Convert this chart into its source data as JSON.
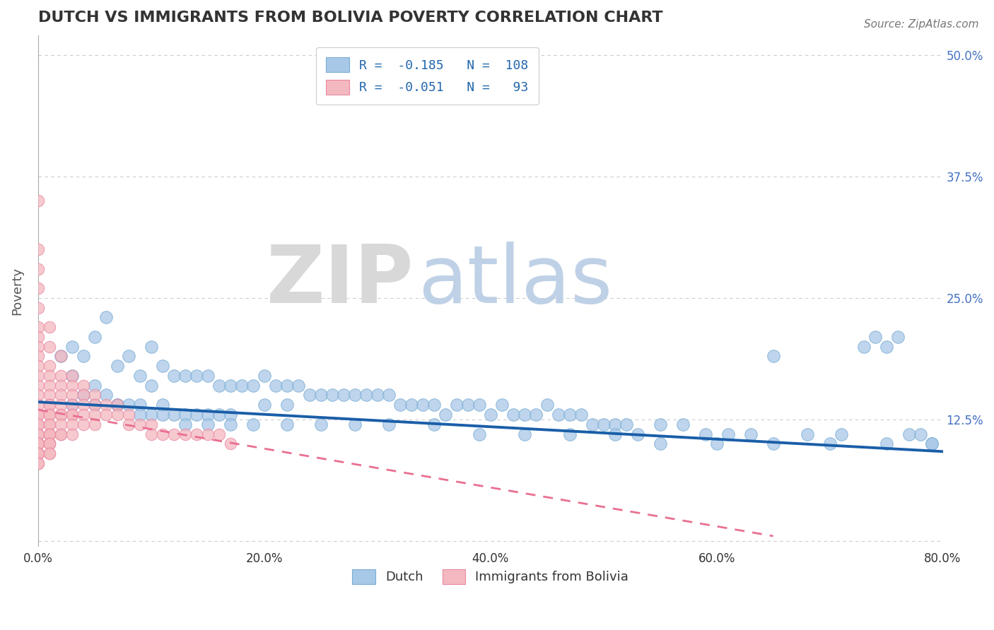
{
  "title": "DUTCH VS IMMIGRANTS FROM BOLIVIA POVERTY CORRELATION CHART",
  "source_text": "Source: ZipAtlas.com",
  "ylabel": "Poverty",
  "watermark_zip": "ZIP",
  "watermark_atlas": "atlas",
  "dutch_color": "#a8c8e8",
  "dutch_edge_color": "#7aadd4",
  "bolivia_color": "#f4b8c0",
  "bolivia_edge_color": "#e888a0",
  "dutch_line_color": "#1a5ea8",
  "bolivia_line_color": "#e87090",
  "xlim": [
    0.0,
    0.8
  ],
  "ylim": [
    -0.005,
    0.52
  ],
  "xticks": [
    0.0,
    0.2,
    0.4,
    0.6,
    0.8
  ],
  "xtick_labels": [
    "0.0%",
    "20.0%",
    "40.0%",
    "60.0%",
    "80.0%"
  ],
  "ytick_positions": [
    0.0,
    0.125,
    0.25,
    0.375,
    0.5
  ],
  "ytick_labels": [
    "",
    "12.5%",
    "25.0%",
    "37.5%",
    "50.0%"
  ],
  "background_color": "#ffffff",
  "grid_color": "#cccccc",
  "title_color": "#333333",
  "dutch_scatter_x": [
    0.02,
    0.03,
    0.03,
    0.04,
    0.04,
    0.05,
    0.05,
    0.06,
    0.06,
    0.07,
    0.07,
    0.08,
    0.08,
    0.09,
    0.09,
    0.1,
    0.1,
    0.1,
    0.11,
    0.11,
    0.12,
    0.12,
    0.13,
    0.13,
    0.14,
    0.14,
    0.15,
    0.15,
    0.16,
    0.16,
    0.17,
    0.17,
    0.18,
    0.19,
    0.2,
    0.2,
    0.21,
    0.22,
    0.22,
    0.23,
    0.24,
    0.25,
    0.26,
    0.27,
    0.28,
    0.29,
    0.3,
    0.31,
    0.32,
    0.33,
    0.34,
    0.35,
    0.36,
    0.37,
    0.38,
    0.39,
    0.4,
    0.41,
    0.42,
    0.43,
    0.44,
    0.45,
    0.46,
    0.47,
    0.48,
    0.49,
    0.5,
    0.51,
    0.52,
    0.53,
    0.55,
    0.57,
    0.59,
    0.61,
    0.63,
    0.65,
    0.68,
    0.71,
    0.73,
    0.75,
    0.77,
    0.78,
    0.79,
    0.03,
    0.05,
    0.07,
    0.09,
    0.11,
    0.13,
    0.15,
    0.17,
    0.19,
    0.22,
    0.25,
    0.28,
    0.31,
    0.35,
    0.39,
    0.43,
    0.47,
    0.51,
    0.55,
    0.6,
    0.65,
    0.7,
    0.75,
    0.79,
    0.76,
    0.74
  ],
  "dutch_scatter_y": [
    0.19,
    0.2,
    0.17,
    0.19,
    0.15,
    0.21,
    0.16,
    0.23,
    0.15,
    0.18,
    0.14,
    0.19,
    0.14,
    0.17,
    0.14,
    0.2,
    0.16,
    0.13,
    0.18,
    0.14,
    0.17,
    0.13,
    0.17,
    0.13,
    0.17,
    0.13,
    0.17,
    0.13,
    0.16,
    0.13,
    0.16,
    0.13,
    0.16,
    0.16,
    0.17,
    0.14,
    0.16,
    0.16,
    0.14,
    0.16,
    0.15,
    0.15,
    0.15,
    0.15,
    0.15,
    0.15,
    0.15,
    0.15,
    0.14,
    0.14,
    0.14,
    0.14,
    0.13,
    0.14,
    0.14,
    0.14,
    0.13,
    0.14,
    0.13,
    0.13,
    0.13,
    0.14,
    0.13,
    0.13,
    0.13,
    0.12,
    0.12,
    0.12,
    0.12,
    0.11,
    0.12,
    0.12,
    0.11,
    0.11,
    0.11,
    0.19,
    0.11,
    0.11,
    0.2,
    0.2,
    0.11,
    0.11,
    0.1,
    0.14,
    0.14,
    0.14,
    0.13,
    0.13,
    0.12,
    0.12,
    0.12,
    0.12,
    0.12,
    0.12,
    0.12,
    0.12,
    0.12,
    0.11,
    0.11,
    0.11,
    0.11,
    0.1,
    0.1,
    0.1,
    0.1,
    0.1,
    0.1,
    0.21,
    0.21
  ],
  "bolivia_scatter_x": [
    0.0,
    0.0,
    0.0,
    0.0,
    0.0,
    0.0,
    0.0,
    0.0,
    0.0,
    0.0,
    0.0,
    0.0,
    0.0,
    0.0,
    0.0,
    0.0,
    0.0,
    0.0,
    0.0,
    0.0,
    0.0,
    0.0,
    0.0,
    0.0,
    0.0,
    0.0,
    0.0,
    0.0,
    0.0,
    0.0,
    0.01,
    0.01,
    0.01,
    0.01,
    0.01,
    0.01,
    0.01,
    0.01,
    0.01,
    0.01,
    0.01,
    0.01,
    0.01,
    0.01,
    0.01,
    0.01,
    0.01,
    0.01,
    0.01,
    0.01,
    0.02,
    0.02,
    0.02,
    0.02,
    0.02,
    0.02,
    0.02,
    0.02,
    0.02,
    0.02,
    0.03,
    0.03,
    0.03,
    0.03,
    0.03,
    0.03,
    0.03,
    0.03,
    0.04,
    0.04,
    0.04,
    0.04,
    0.04,
    0.05,
    0.05,
    0.05,
    0.05,
    0.06,
    0.06,
    0.07,
    0.07,
    0.08,
    0.08,
    0.09,
    0.1,
    0.1,
    0.11,
    0.12,
    0.13,
    0.14,
    0.15,
    0.16,
    0.17
  ],
  "bolivia_scatter_y": [
    0.35,
    0.3,
    0.28,
    0.26,
    0.24,
    0.22,
    0.21,
    0.2,
    0.19,
    0.18,
    0.17,
    0.16,
    0.15,
    0.14,
    0.13,
    0.13,
    0.12,
    0.12,
    0.11,
    0.11,
    0.1,
    0.1,
    0.1,
    0.1,
    0.09,
    0.09,
    0.09,
    0.09,
    0.08,
    0.08,
    0.22,
    0.2,
    0.18,
    0.17,
    0.16,
    0.15,
    0.14,
    0.14,
    0.13,
    0.13,
    0.12,
    0.12,
    0.11,
    0.11,
    0.11,
    0.1,
    0.1,
    0.1,
    0.09,
    0.09,
    0.19,
    0.17,
    0.16,
    0.15,
    0.14,
    0.13,
    0.13,
    0.12,
    0.11,
    0.11,
    0.17,
    0.16,
    0.15,
    0.14,
    0.13,
    0.13,
    0.12,
    0.11,
    0.16,
    0.15,
    0.14,
    0.13,
    0.12,
    0.15,
    0.14,
    0.13,
    0.12,
    0.14,
    0.13,
    0.14,
    0.13,
    0.13,
    0.12,
    0.12,
    0.12,
    0.11,
    0.11,
    0.11,
    0.11,
    0.11,
    0.11,
    0.11,
    0.1
  ],
  "dutch_trend_x": [
    0.0,
    0.8
  ],
  "dutch_trend_y": [
    0.143,
    0.092
  ],
  "bolivia_trend_x": [
    0.0,
    0.65
  ],
  "bolivia_trend_y": [
    0.135,
    0.005
  ],
  "bottom_legend_labels": [
    "Dutch",
    "Immigrants from Bolivia"
  ]
}
